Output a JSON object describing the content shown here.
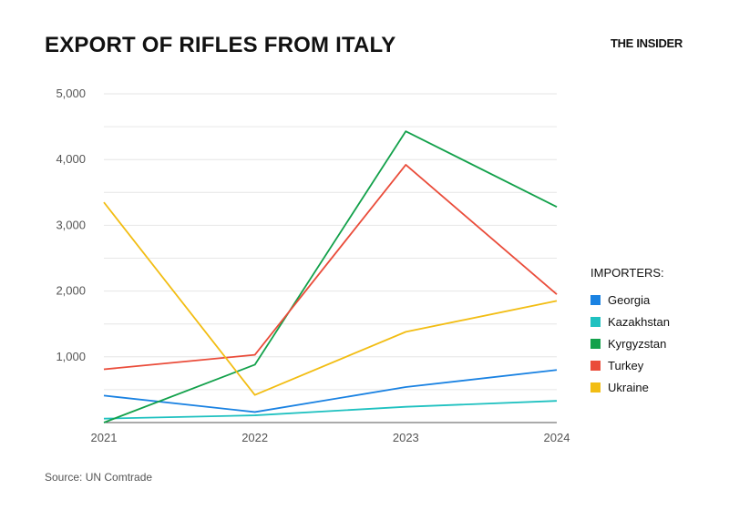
{
  "header": {
    "title": "EXPORT OF RIFLES FROM ITALY",
    "brand": "THE INSIDER"
  },
  "footer": {
    "source": "Source: UN Comtrade"
  },
  "legend": {
    "title": "IMPORTERS:"
  },
  "chart_data": {
    "type": "line",
    "title": "EXPORT OF RIFLES FROM ITALY",
    "xlabel": "",
    "ylabel": "",
    "x": [
      "2021",
      "2022",
      "2023",
      "2024"
    ],
    "ylim": [
      0,
      5000
    ],
    "yticks": [
      1000,
      2000,
      3000,
      4000,
      5000
    ],
    "ytick_labels": [
      "1,000",
      "2,000",
      "3,000",
      "4,000",
      "5,000"
    ],
    "grid": true,
    "legend_position": "right",
    "series": [
      {
        "name": "Georgia",
        "color": "#1a82e2",
        "values": [
          410,
          160,
          540,
          800
        ]
      },
      {
        "name": "Kazakhstan",
        "color": "#1fc1c0",
        "values": [
          60,
          110,
          240,
          330
        ]
      },
      {
        "name": "Kyrgyzstan",
        "color": "#13a14b",
        "values": [
          0,
          880,
          4430,
          3280
        ]
      },
      {
        "name": "Turkey",
        "color": "#ea4c3a",
        "values": [
          810,
          1030,
          3920,
          1950
        ]
      },
      {
        "name": "Ukraine",
        "color": "#f2bd13",
        "values": [
          3350,
          420,
          1380,
          1850
        ]
      }
    ]
  }
}
